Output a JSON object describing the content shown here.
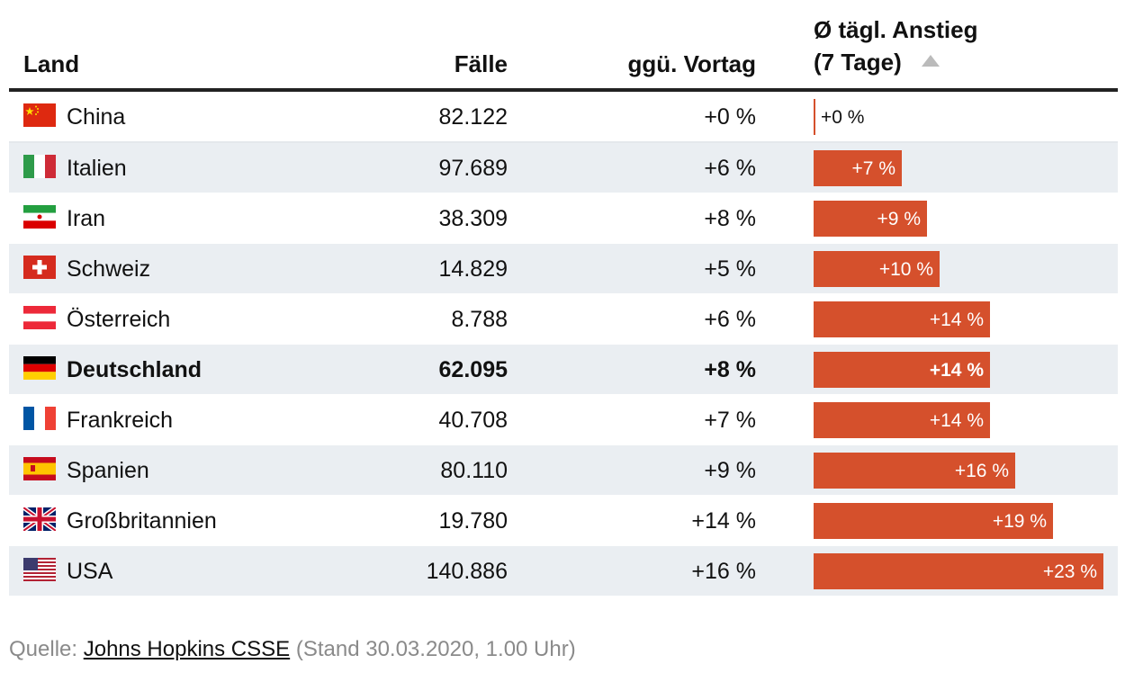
{
  "header": {
    "col_land": "Land",
    "col_faelle": "Fälle",
    "col_vortag": "ggü. Vortag",
    "col_anstieg_line1": "Ø tägl. Anstieg",
    "col_anstieg_line2": "(7 Tage)",
    "sort_icon": "triangle-up-icon"
  },
  "chart_data": {
    "type": "table",
    "columns": [
      "Land",
      "Fälle",
      "ggü. Vortag",
      "Ø tägl. Anstieg (7 Tage)"
    ],
    "bar_color": "#d5502c",
    "row_stripe_color": "#eaeef2",
    "sorted_by": "Ø tägl. Anstieg (7 Tage)",
    "sort_direction": "ascending",
    "rows": [
      {
        "land": "China",
        "flag": "china-flag-icon",
        "faelle": "82.122",
        "vortag": "+0 %",
        "anstieg": 0,
        "anstieg_label": "+0 %",
        "highlight": false
      },
      {
        "land": "Italien",
        "flag": "italy-flag-icon",
        "faelle": "97.689",
        "vortag": "+6 %",
        "anstieg": 7,
        "anstieg_label": "+7 %",
        "highlight": false
      },
      {
        "land": "Iran",
        "flag": "iran-flag-icon",
        "faelle": "38.309",
        "vortag": "+8 %",
        "anstieg": 9,
        "anstieg_label": "+9 %",
        "highlight": false
      },
      {
        "land": "Schweiz",
        "flag": "switzerland-flag-icon",
        "faelle": "14.829",
        "vortag": "+5 %",
        "anstieg": 10,
        "anstieg_label": "+10 %",
        "highlight": false
      },
      {
        "land": "Österreich",
        "flag": "austria-flag-icon",
        "faelle": "8.788",
        "vortag": "+6 %",
        "anstieg": 14,
        "anstieg_label": "+14 %",
        "highlight": false
      },
      {
        "land": "Deutschland",
        "flag": "germany-flag-icon",
        "faelle": "62.095",
        "vortag": "+8 %",
        "anstieg": 14,
        "anstieg_label": "+14 %",
        "highlight": true
      },
      {
        "land": "Frankreich",
        "flag": "france-flag-icon",
        "faelle": "40.708",
        "vortag": "+7 %",
        "anstieg": 14,
        "anstieg_label": "+14 %",
        "highlight": false
      },
      {
        "land": "Spanien",
        "flag": "spain-flag-icon",
        "faelle": "80.110",
        "vortag": "+9 %",
        "anstieg": 16,
        "anstieg_label": "+16 %",
        "highlight": false
      },
      {
        "land": "Großbritannien",
        "flag": "uk-flag-icon",
        "faelle": "19.780",
        "vortag": "+14 %",
        "anstieg": 19,
        "anstieg_label": "+19 %",
        "highlight": false
      },
      {
        "land": "USA",
        "flag": "usa-flag-icon",
        "faelle": "140.886",
        "vortag": "+16 %",
        "anstieg": 23,
        "anstieg_label": "+23 %",
        "highlight": false
      }
    ],
    "bar_max": 23
  },
  "source": {
    "prefix": "Quelle: ",
    "link_text": "Johns Hopkins CSSE",
    "suffix": " (Stand 30.03.2020, 1.00 Uhr)"
  }
}
